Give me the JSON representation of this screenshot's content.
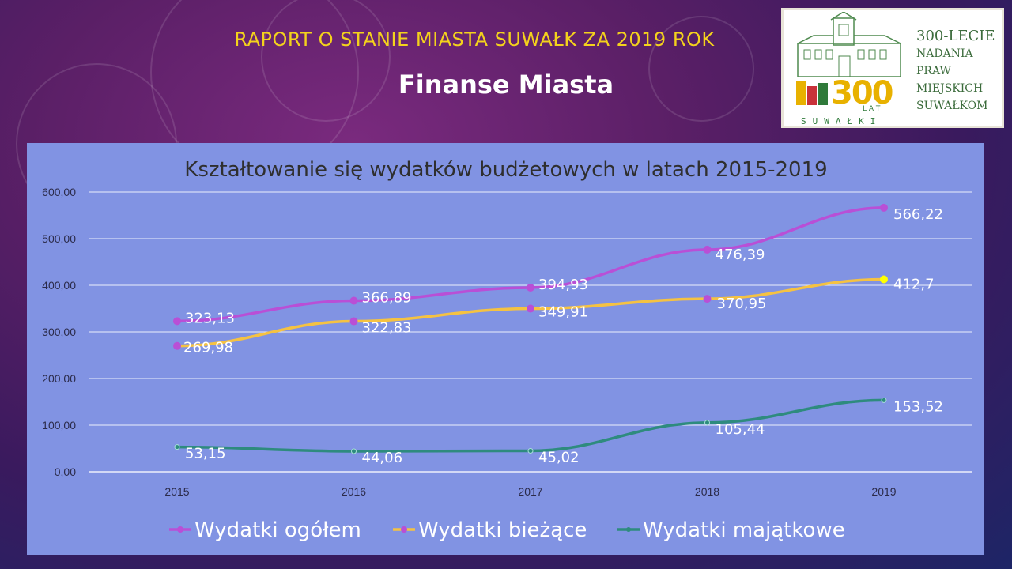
{
  "header": {
    "title": "RAPORT O STANIE MIASTA SUWAŁK ZA 2019 ROK",
    "subtitle": "Finanse Miasta"
  },
  "logo": {
    "lines": [
      "300-LECIE",
      "NADANIA",
      "PRAW",
      "MIEJSKICH",
      "SUWAŁKOM"
    ],
    "emblem": "300",
    "emblem_lat": "L A T",
    "city": "SUWAŁKI"
  },
  "chart_data": {
    "type": "line",
    "title": "Kształtowanie się wydatków budżetowych w latach 2015-2019",
    "categories": [
      "2015",
      "2016",
      "2017",
      "2018",
      "2019"
    ],
    "y_ticks": [
      "0,00",
      "100,00",
      "200,00",
      "300,00",
      "400,00",
      "500,00",
      "600,00"
    ],
    "ylim": [
      0,
      600
    ],
    "grid": true,
    "legend_position": "bottom",
    "series": [
      {
        "name": "Wydatki ogółem",
        "values": [
          323.13,
          366.89,
          394.93,
          476.39,
          566.22
        ],
        "labels": [
          "323,13",
          "366,89",
          "394,93",
          "476,39",
          "566,22"
        ],
        "color": "#b94fd6"
      },
      {
        "name": "Wydatki bieżące",
        "values": [
          269.98,
          322.83,
          349.91,
          370.95,
          412.7
        ],
        "labels": [
          "269,98",
          "322,83",
          "349,91",
          "370,95",
          "412,7"
        ],
        "color": "#f5c242"
      },
      {
        "name": "Wydatki majątkowe",
        "values": [
          53.15,
          44.06,
          45.02,
          105.44,
          153.52
        ],
        "labels": [
          "53,15",
          "44,06",
          "45,02",
          "105,44",
          "153,52"
        ],
        "color": "#2e8b7e"
      }
    ]
  }
}
